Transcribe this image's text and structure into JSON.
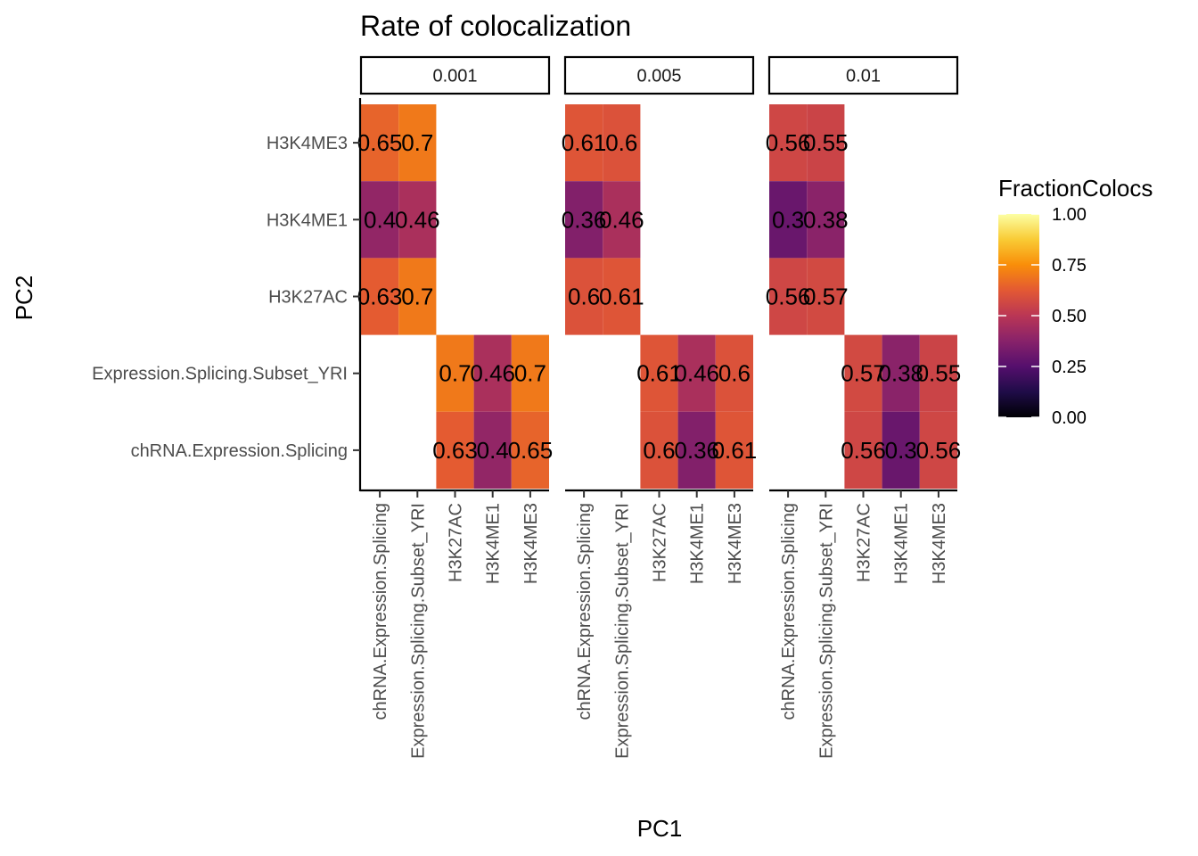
{
  "chart_data": {
    "type": "heatmap",
    "title": "Rate of colocalization",
    "xlabel": "PC1",
    "ylabel": "PC2",
    "facets": [
      "0.001",
      "0.005",
      "0.01"
    ],
    "x_categories": [
      "chRNA.Expression.Splicing",
      "Expression.Splicing.Subset_YRI",
      "H3K27AC",
      "H3K4ME1",
      "H3K4ME3"
    ],
    "y_categories": [
      "chRNA.Expression.Splicing",
      "Expression.Splicing.Subset_YRI",
      "H3K27AC",
      "H3K4ME1",
      "H3K4ME3"
    ],
    "fill_name": "FractionColocs",
    "fill_limits": [
      0,
      1
    ],
    "fill_breaks": [
      0.0,
      0.25,
      0.5,
      0.75,
      1.0
    ],
    "fill_break_labels": [
      "0.00",
      "0.25",
      "0.50",
      "0.75",
      "1.00"
    ],
    "palette": [
      "#000004",
      "#1f0c48",
      "#550f6d",
      "#88226a",
      "#ba3655",
      "#e35933",
      "#f98e09",
      "#f9cb35",
      "#fcffa4"
    ],
    "legend_position": "right",
    "panels": [
      {
        "facet": "0.001",
        "cells": [
          {
            "x": "chRNA.Expression.Splicing",
            "y": "H3K4ME3",
            "value": 0.65,
            "label": "0.65"
          },
          {
            "x": "Expression.Splicing.Subset_YRI",
            "y": "H3K4ME3",
            "value": 0.7,
            "label": "0.7"
          },
          {
            "x": "chRNA.Expression.Splicing",
            "y": "H3K4ME1",
            "value": 0.4,
            "label": "0.4"
          },
          {
            "x": "Expression.Splicing.Subset_YRI",
            "y": "H3K4ME1",
            "value": 0.46,
            "label": "0.46"
          },
          {
            "x": "chRNA.Expression.Splicing",
            "y": "H3K27AC",
            "value": 0.63,
            "label": "0.63"
          },
          {
            "x": "Expression.Splicing.Subset_YRI",
            "y": "H3K27AC",
            "value": 0.7,
            "label": "0.7"
          },
          {
            "x": "H3K27AC",
            "y": "Expression.Splicing.Subset_YRI",
            "value": 0.7,
            "label": "0.7"
          },
          {
            "x": "H3K4ME1",
            "y": "Expression.Splicing.Subset_YRI",
            "value": 0.46,
            "label": "0.46"
          },
          {
            "x": "H3K4ME3",
            "y": "Expression.Splicing.Subset_YRI",
            "value": 0.7,
            "label": "0.7"
          },
          {
            "x": "H3K27AC",
            "y": "chRNA.Expression.Splicing",
            "value": 0.63,
            "label": "0.63"
          },
          {
            "x": "H3K4ME1",
            "y": "chRNA.Expression.Splicing",
            "value": 0.4,
            "label": "0.4"
          },
          {
            "x": "H3K4ME3",
            "y": "chRNA.Expression.Splicing",
            "value": 0.65,
            "label": "0.65"
          }
        ]
      },
      {
        "facet": "0.005",
        "cells": [
          {
            "x": "chRNA.Expression.Splicing",
            "y": "H3K4ME3",
            "value": 0.61,
            "label": "0.61"
          },
          {
            "x": "Expression.Splicing.Subset_YRI",
            "y": "H3K4ME3",
            "value": 0.6,
            "label": "0.6"
          },
          {
            "x": "chRNA.Expression.Splicing",
            "y": "H3K4ME1",
            "value": 0.36,
            "label": "0.36"
          },
          {
            "x": "Expression.Splicing.Subset_YRI",
            "y": "H3K4ME1",
            "value": 0.46,
            "label": "0.46"
          },
          {
            "x": "chRNA.Expression.Splicing",
            "y": "H3K27AC",
            "value": 0.6,
            "label": "0.6"
          },
          {
            "x": "Expression.Splicing.Subset_YRI",
            "y": "H3K27AC",
            "value": 0.61,
            "label": "0.61"
          },
          {
            "x": "H3K27AC",
            "y": "Expression.Splicing.Subset_YRI",
            "value": 0.61,
            "label": "0.61"
          },
          {
            "x": "H3K4ME1",
            "y": "Expression.Splicing.Subset_YRI",
            "value": 0.46,
            "label": "0.46"
          },
          {
            "x": "H3K4ME3",
            "y": "Expression.Splicing.Subset_YRI",
            "value": 0.6,
            "label": "0.6"
          },
          {
            "x": "H3K27AC",
            "y": "chRNA.Expression.Splicing",
            "value": 0.6,
            "label": "0.6"
          },
          {
            "x": "H3K4ME1",
            "y": "chRNA.Expression.Splicing",
            "value": 0.36,
            "label": "0.36"
          },
          {
            "x": "H3K4ME3",
            "y": "chRNA.Expression.Splicing",
            "value": 0.61,
            "label": "0.61"
          }
        ]
      },
      {
        "facet": "0.01",
        "cells": [
          {
            "x": "chRNA.Expression.Splicing",
            "y": "H3K4ME3",
            "value": 0.56,
            "label": "0.56"
          },
          {
            "x": "Expression.Splicing.Subset_YRI",
            "y": "H3K4ME3",
            "value": 0.55,
            "label": "0.55"
          },
          {
            "x": "chRNA.Expression.Splicing",
            "y": "H3K4ME1",
            "value": 0.3,
            "label": "0.3"
          },
          {
            "x": "Expression.Splicing.Subset_YRI",
            "y": "H3K4ME1",
            "value": 0.38,
            "label": "0.38"
          },
          {
            "x": "chRNA.Expression.Splicing",
            "y": "H3K27AC",
            "value": 0.56,
            "label": "0.56"
          },
          {
            "x": "Expression.Splicing.Subset_YRI",
            "y": "H3K27AC",
            "value": 0.57,
            "label": "0.57"
          },
          {
            "x": "H3K27AC",
            "y": "Expression.Splicing.Subset_YRI",
            "value": 0.57,
            "label": "0.57"
          },
          {
            "x": "H3K4ME1",
            "y": "Expression.Splicing.Subset_YRI",
            "value": 0.38,
            "label": "0.38"
          },
          {
            "x": "H3K4ME3",
            "y": "Expression.Splicing.Subset_YRI",
            "value": 0.55,
            "label": "0.55"
          },
          {
            "x": "H3K27AC",
            "y": "chRNA.Expression.Splicing",
            "value": 0.56,
            "label": "0.56"
          },
          {
            "x": "H3K4ME1",
            "y": "chRNA.Expression.Splicing",
            "value": 0.3,
            "label": "0.3"
          },
          {
            "x": "H3K4ME3",
            "y": "chRNA.Expression.Splicing",
            "value": 0.56,
            "label": "0.56"
          }
        ]
      }
    ]
  }
}
